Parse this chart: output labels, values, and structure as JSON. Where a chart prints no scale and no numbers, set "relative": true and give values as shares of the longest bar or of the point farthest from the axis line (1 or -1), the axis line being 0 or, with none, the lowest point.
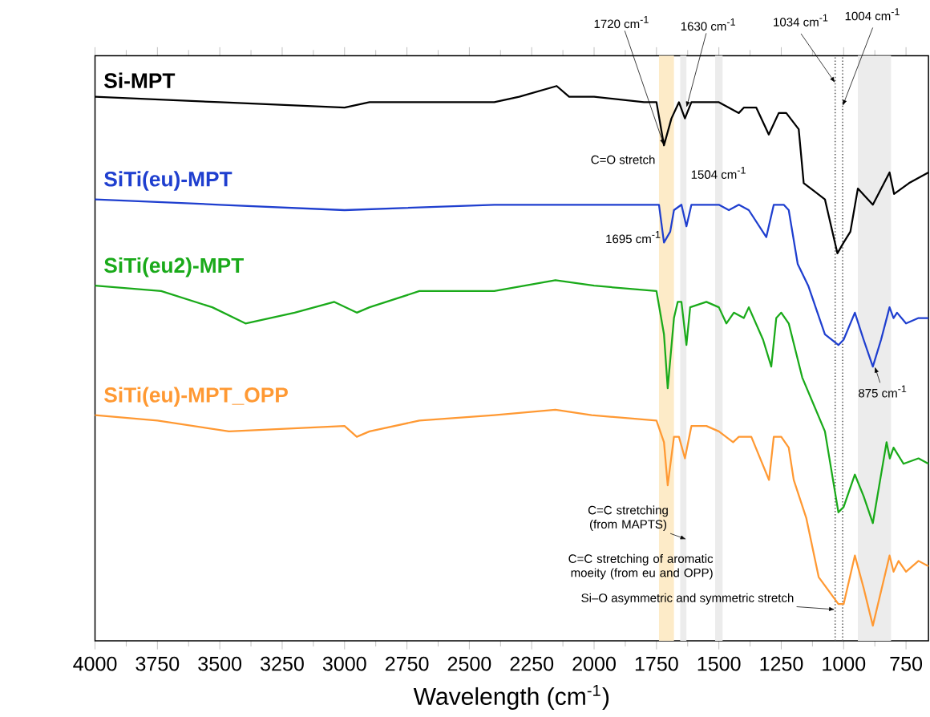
{
  "chart_data": {
    "type": "line",
    "relative": true,
    "xlabel": "Wavelength (cm$^{-1}$)",
    "xlim": [
      4000,
      660
    ],
    "xticks": [
      4000,
      3750,
      3500,
      3250,
      3000,
      2750,
      2500,
      2250,
      2000,
      1750,
      1500,
      1250,
      1000,
      750
    ],
    "series": [
      {
        "name": "Si-MPT",
        "color": "#000000",
        "x": [
          4000,
          3500,
          3000,
          2900,
          2500,
          2400,
          2300,
          2150,
          2100,
          2000,
          1800,
          1750,
          1720,
          1690,
          1660,
          1636,
          1610,
          1500,
          1420,
          1400,
          1350,
          1300,
          1260,
          1230,
          1180,
          1160,
          1075,
          1050,
          1025,
          1000,
          973,
          943,
          883,
          816,
          798,
          738,
          660
        ],
        "values": [
          0.98,
          0.97,
          0.96,
          0.97,
          0.97,
          0.97,
          0.98,
          1.0,
          0.98,
          0.98,
          0.97,
          0.97,
          0.89,
          0.94,
          0.97,
          0.94,
          0.97,
          0.97,
          0.95,
          0.96,
          0.96,
          0.91,
          0.95,
          0.95,
          0.92,
          0.82,
          0.79,
          0.74,
          0.69,
          0.71,
          0.73,
          0.81,
          0.78,
          0.84,
          0.8,
          0.82,
          0.84
        ]
      },
      {
        "name": "SiTi(eu)-MPT",
        "color": "#1f3fcf",
        "x": [
          4000,
          3500,
          3000,
          2400,
          2000,
          1740,
          1720,
          1695,
          1680,
          1650,
          1630,
          1610,
          1500,
          1460,
          1420,
          1380,
          1310,
          1280,
          1240,
          1220,
          1184,
          1142,
          1075,
          1021,
          1000,
          955,
          920,
          883,
          850,
          816,
          800,
          786,
          750,
          700,
          660
        ],
        "values": [
          0.79,
          0.78,
          0.77,
          0.78,
          0.78,
          0.78,
          0.71,
          0.73,
          0.77,
          0.78,
          0.74,
          0.78,
          0.78,
          0.77,
          0.78,
          0.77,
          0.72,
          0.78,
          0.78,
          0.77,
          0.67,
          0.63,
          0.54,
          0.52,
          0.53,
          0.58,
          0.53,
          0.48,
          0.53,
          0.59,
          0.57,
          0.58,
          0.56,
          0.57,
          0.57
        ]
      },
      {
        "name": "SiTi(eu2)-MPT",
        "color": "#1aaa1a",
        "x": [
          4000,
          3735,
          3530,
          3397,
          3200,
          3041,
          2951,
          2900,
          2700,
          2400,
          2155,
          2000,
          1750,
          1720,
          1705,
          1680,
          1665,
          1650,
          1630,
          1615,
          1550,
          1500,
          1470,
          1440,
          1400,
          1380,
          1323,
          1290,
          1270,
          1250,
          1220,
          1166,
          1075,
          1021,
          1000,
          955,
          920,
          883,
          828,
          815,
          800,
          760,
          700,
          660
        ],
        "values": [
          0.63,
          0.62,
          0.59,
          0.56,
          0.58,
          0.6,
          0.58,
          0.59,
          0.62,
          0.62,
          0.64,
          0.63,
          0.62,
          0.54,
          0.44,
          0.57,
          0.6,
          0.6,
          0.52,
          0.59,
          0.6,
          0.59,
          0.56,
          0.58,
          0.57,
          0.59,
          0.53,
          0.48,
          0.57,
          0.58,
          0.56,
          0.46,
          0.36,
          0.21,
          0.22,
          0.28,
          0.24,
          0.19,
          0.34,
          0.31,
          0.33,
          0.3,
          0.31,
          0.3
        ]
      },
      {
        "name": "SiTi(eu)-MPT_OPP",
        "color": "#ff9933",
        "x": [
          4000,
          3750,
          3463,
          3000,
          2951,
          2900,
          2700,
          2400,
          2155,
          2010,
          1750,
          1720,
          1705,
          1680,
          1660,
          1636,
          1610,
          1550,
          1500,
          1443,
          1420,
          1400,
          1370,
          1299,
          1280,
          1250,
          1220,
          1200,
          1150,
          1100,
          1021,
          1000,
          955,
          920,
          883,
          816,
          800,
          780,
          750,
          700,
          660
        ],
        "values": [
          0.39,
          0.38,
          0.36,
          0.37,
          0.35,
          0.36,
          0.38,
          0.39,
          0.4,
          0.39,
          0.38,
          0.34,
          0.26,
          0.35,
          0.35,
          0.31,
          0.37,
          0.37,
          0.36,
          0.34,
          0.35,
          0.35,
          0.35,
          0.27,
          0.35,
          0.35,
          0.33,
          0.27,
          0.2,
          0.09,
          0.04,
          0.04,
          0.13,
          0.07,
          0.0,
          0.13,
          0.1,
          0.12,
          0.1,
          0.12,
          0.11
        ]
      }
    ],
    "bands": [
      {
        "axis": "x",
        "from": 1740,
        "to": 1680,
        "color": "#fdebc8"
      },
      {
        "axis": "x",
        "from": 1655,
        "to": 1630,
        "color": "#ececec"
      },
      {
        "axis": "x",
        "from": 1515,
        "to": 1485,
        "color": "#ececec",
        "label": "1504 cm$^{-1}$"
      },
      {
        "axis": "x",
        "from": 943,
        "to": 810,
        "color": "#ececec"
      }
    ],
    "ref_lines": [
      {
        "axis": "x",
        "value": 1034,
        "label": "1034 cm$^{-1}$",
        "color": "#555555",
        "line_style": "dotted"
      },
      {
        "axis": "x",
        "value": 1004,
        "label": "1004 cm$^{-1}$",
        "color": "#555555",
        "line_style": "dotted"
      }
    ],
    "annotations": [
      {
        "text": "1720 cm$^{-1}$",
        "x": 1720,
        "y": 0.89
      },
      {
        "text": "1630 cm$^{-1}$",
        "x": 1630,
        "y": 0.96
      },
      {
        "text": "C=O stretch",
        "x": 1720,
        "y": 0.86
      },
      {
        "text": "1695 cm$^{-1}$",
        "x": 1695,
        "y": 0.72
      },
      {
        "text": "875 cm$^{-1}$",
        "x": 875,
        "y": 0.48
      },
      {
        "text": "C=C stretching (from MAPTS)",
        "x": 1630,
        "y": 0.16
      },
      {
        "text": "C=C stretching of aromatic moeity (from eu and OPP)",
        "x": 1504,
        "y": 0.13
      },
      {
        "text": "Si–O asymmetric and symmetric stretch",
        "x": 1034,
        "y": 0.03
      }
    ]
  }
}
